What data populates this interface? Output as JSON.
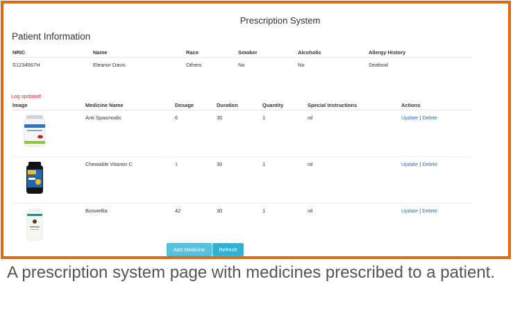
{
  "app_title": "Prescription System",
  "patient_section": {
    "title": "Patient Information",
    "headers": [
      "NRIC",
      "Name",
      "Race",
      "Smoker",
      "Alcoholic",
      "Allergy History"
    ],
    "row": [
      "S1234567H",
      "Eleanor Davis",
      "Others",
      "No",
      "No",
      "Seafood"
    ]
  },
  "status_message": "Log updated!",
  "medicines": {
    "headers": [
      "Image",
      "Medicine Name",
      "Dosage",
      "Duration",
      "Quantity",
      "Special Instructions",
      "Actions"
    ],
    "rows": [
      {
        "image": "white-bottle-blue-label",
        "name": "Anti Spasmodic",
        "dosage": "6",
        "duration": "30",
        "quantity": "1",
        "instructions": "nil",
        "update": "Update",
        "delete": "Delete"
      },
      {
        "image": "dark-bottle-colorful-label",
        "name": "Chewable Vitamin C",
        "dosage": "1",
        "duration": "30",
        "quantity": "1",
        "instructions": "nil",
        "update": "Update",
        "delete": "Delete"
      },
      {
        "image": "white-bottle-teal-label",
        "name": "Boswellia",
        "dosage": "42",
        "duration": "30",
        "quantity": "1",
        "instructions": "nil",
        "update": "Update",
        "delete": "Delete"
      }
    ]
  },
  "buttons": {
    "add": "Add Medicine",
    "refresh": "Refresh"
  },
  "separator": "|",
  "caption": "A prescription system page with medicines prescribed to a patient.",
  "colors": {
    "frame": "#e2680f",
    "button": "#5bc0de",
    "link": "#2f6fb3",
    "alert": "#e0262a"
  }
}
